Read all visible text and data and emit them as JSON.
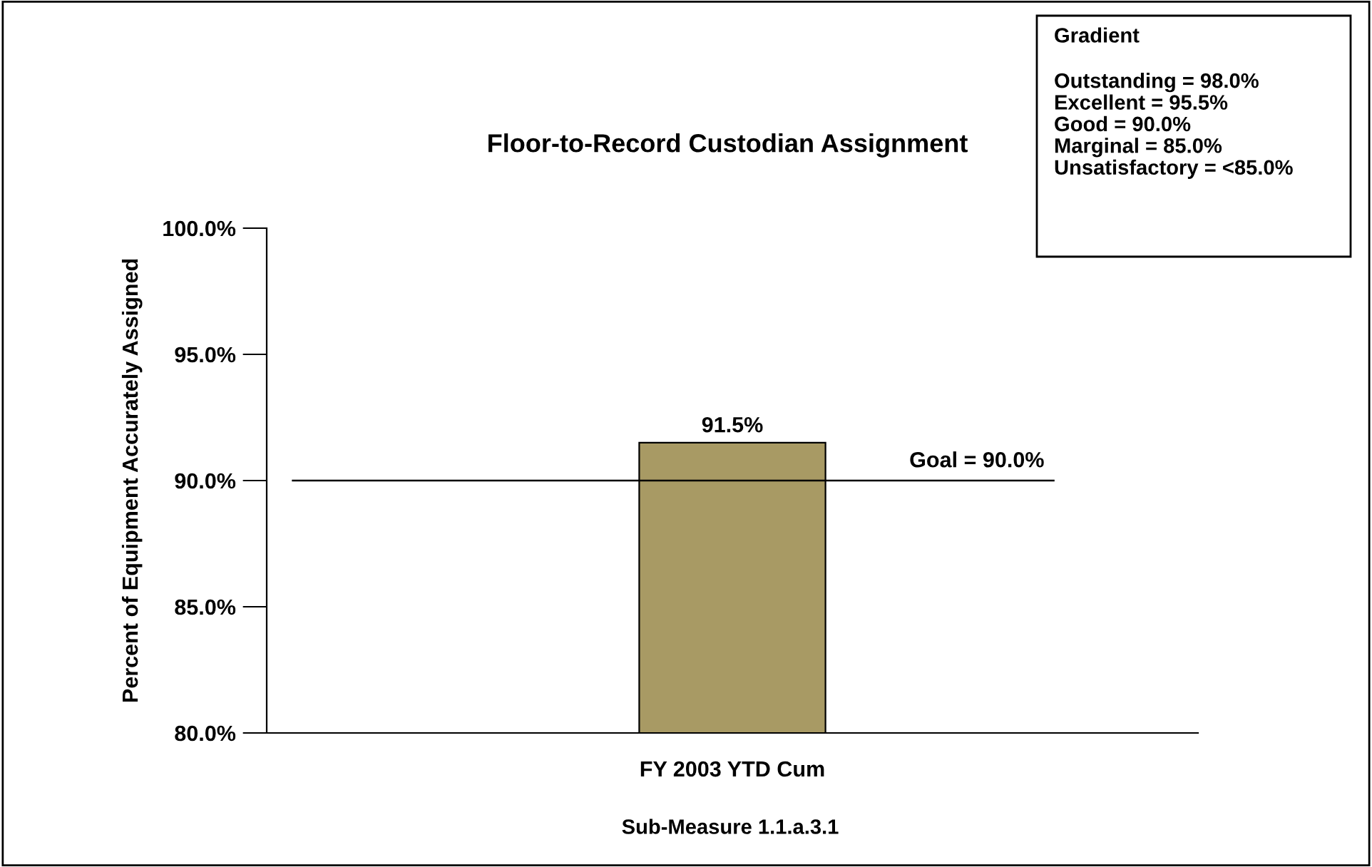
{
  "chart_data": {
    "type": "bar",
    "title": "Floor-to-Record Custodian Assignment",
    "ylabel": "Percent of Equipment Accurately Assigned",
    "categories": [
      "FY 2003 YTD Cum"
    ],
    "series": [
      {
        "color": "#a89a64",
        "values": [
          91.5
        ],
        "value_labels": [
          "91.5%"
        ]
      }
    ],
    "ylim": [
      80,
      100
    ],
    "yticks": [
      {
        "value": 80,
        "label": "80.0%"
      },
      {
        "value": 85,
        "label": "85.0%"
      },
      {
        "value": 90,
        "label": "90.0%"
      },
      {
        "value": 95,
        "label": "95.0%"
      },
      {
        "value": 100,
        "label": "100.0%"
      }
    ],
    "ref_lines": [
      {
        "axis": "y",
        "value": 90,
        "label": "Goal = 90.0%",
        "color": "#000000"
      }
    ],
    "annotations": [
      "Gradient",
      "Outstanding = 98.0%\nExcellent = 95.5%\nGood = 90.0%\nMarginal = 85.0%\nUnsatisfactory = <85.0%",
      "Sub-Measure 1.1.a.3.1"
    ],
    "grid": false,
    "legend": false
  }
}
